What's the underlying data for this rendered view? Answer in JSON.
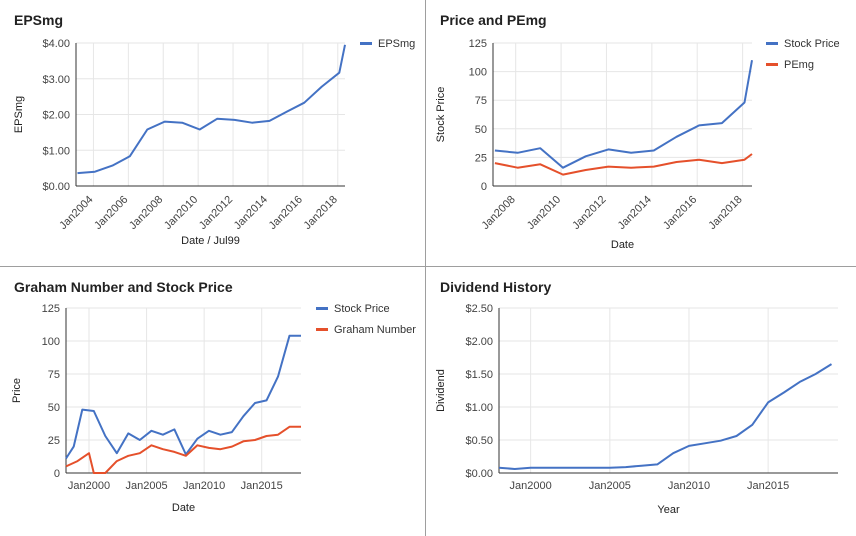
{
  "colors": {
    "blue": "#4472C4",
    "red": "#E5502B",
    "grid": "#e6e6e6",
    "axis": "#333333",
    "text": "#444444"
  },
  "chart_data": [
    {
      "type": "line",
      "title": "EPSmg",
      "xlabel": "Date / Jul99",
      "ylabel": "EPSmg",
      "x_type": "date",
      "xlim": [
        "2003-01-01",
        "2018-06-01"
      ],
      "ylim": [
        0,
        4
      ],
      "yticks": [
        0,
        1,
        2,
        3,
        4
      ],
      "ytick_labels": [
        "$0.00",
        "$1.00",
        "$2.00",
        "$3.00",
        "$4.00"
      ],
      "xticks": [
        "2004-01-01",
        "2006-01-01",
        "2008-01-01",
        "2010-01-01",
        "2012-01-01",
        "2014-01-01",
        "2016-01-01",
        "2018-01-01"
      ],
      "xtick_labels": [
        "Jan2004",
        "Jan2006",
        "Jan2008",
        "Jan2010",
        "Jan2012",
        "Jan2014",
        "Jan2016",
        "Jan2018"
      ],
      "xtick_rotate": true,
      "grid": true,
      "legend_position": "right",
      "series": [
        {
          "name": "EPSmg",
          "color": "#4472C4",
          "x": [
            "2003-02-01",
            "2004-02-01",
            "2005-02-01",
            "2006-02-01",
            "2007-02-01",
            "2008-02-01",
            "2009-02-01",
            "2010-02-01",
            "2011-02-01",
            "2012-02-01",
            "2013-02-01",
            "2014-02-01",
            "2015-02-01",
            "2016-02-01",
            "2017-02-01",
            "2018-02-01",
            "2018-06-01"
          ],
          "y": [
            0.36,
            0.4,
            0.57,
            0.83,
            1.58,
            1.8,
            1.77,
            1.58,
            1.88,
            1.85,
            1.77,
            1.82,
            2.08,
            2.33,
            2.78,
            3.17,
            3.95
          ]
        }
      ]
    },
    {
      "type": "line",
      "title": "Price and PEmg",
      "xlabel": "Date",
      "ylabel": "Stock Price",
      "x_type": "date",
      "xlim": [
        "2007-01-01",
        "2018-06-01"
      ],
      "ylim": [
        0,
        125
      ],
      "yticks": [
        0,
        25,
        50,
        75,
        100,
        125
      ],
      "ytick_labels": [
        "0",
        "25",
        "50",
        "75",
        "100",
        "125"
      ],
      "xticks": [
        "2008-01-01",
        "2010-01-01",
        "2012-01-01",
        "2014-01-01",
        "2016-01-01",
        "2018-01-01"
      ],
      "xtick_labels": [
        "Jan2008",
        "Jan2010",
        "Jan2012",
        "Jan2014",
        "Jan2016",
        "Jan2018"
      ],
      "xtick_rotate": true,
      "grid": true,
      "legend_position": "right",
      "series": [
        {
          "name": "Stock Price",
          "color": "#4472C4",
          "x": [
            "2007-02-01",
            "2008-02-01",
            "2009-02-01",
            "2010-02-01",
            "2011-02-01",
            "2012-02-01",
            "2013-02-01",
            "2014-02-01",
            "2015-02-01",
            "2016-02-01",
            "2017-02-01",
            "2018-02-01",
            "2018-06-01"
          ],
          "y": [
            31,
            29,
            33,
            16,
            26,
            32,
            29,
            31,
            43,
            53,
            55,
            73,
            110
          ]
        },
        {
          "name": "PEmg",
          "color": "#E5502B",
          "x": [
            "2007-02-01",
            "2008-02-01",
            "2009-02-01",
            "2010-02-01",
            "2011-02-01",
            "2012-02-01",
            "2013-02-01",
            "2014-02-01",
            "2015-02-01",
            "2016-02-01",
            "2017-02-01",
            "2018-02-01",
            "2018-06-01"
          ],
          "y": [
            20,
            16,
            19,
            10,
            14,
            17,
            16,
            17,
            21,
            23,
            20,
            23,
            28
          ]
        }
      ]
    },
    {
      "type": "line",
      "title": "Graham Number and Stock Price",
      "xlabel": "Date",
      "ylabel": "Price",
      "x_type": "date",
      "xlim": [
        "1998-01-01",
        "2018-06-01"
      ],
      "ylim": [
        0,
        125
      ],
      "yticks": [
        0,
        25,
        50,
        75,
        100,
        125
      ],
      "ytick_labels": [
        "0",
        "25",
        "50",
        "75",
        "100",
        "125"
      ],
      "xticks": [
        "2000-01-01",
        "2005-01-01",
        "2010-01-01",
        "2015-01-01"
      ],
      "xtick_labels": [
        "Jan2000",
        "Jan2005",
        "Jan2010",
        "Jan2015"
      ],
      "xtick_rotate": false,
      "grid": true,
      "legend_position": "right",
      "series": [
        {
          "name": "Stock Price",
          "color": "#4472C4",
          "x": [
            "1998-01-01",
            "1998-09-01",
            "1999-06-01",
            "2000-06-01",
            "2001-06-01",
            "2002-06-01",
            "2003-06-01",
            "2004-06-01",
            "2005-06-01",
            "2006-06-01",
            "2007-06-01",
            "2008-06-01",
            "2009-06-01",
            "2010-06-01",
            "2011-06-01",
            "2012-06-01",
            "2013-06-01",
            "2014-06-01",
            "2015-06-01",
            "2016-06-01",
            "2017-06-01",
            "2018-06-01"
          ],
          "y": [
            11,
            20,
            48,
            47,
            28,
            15,
            30,
            25,
            32,
            29,
            33,
            14,
            26,
            32,
            29,
            31,
            43,
            53,
            55,
            73,
            104,
            104
          ]
        },
        {
          "name": "Graham Number",
          "color": "#E5502B",
          "x": [
            "1998-01-01",
            "1999-01-01",
            "2000-01-01",
            "2000-06-01",
            "2001-06-01",
            "2002-06-01",
            "2003-06-01",
            "2004-06-01",
            "2005-06-01",
            "2006-06-01",
            "2007-06-01",
            "2008-06-01",
            "2009-06-01",
            "2010-06-01",
            "2011-06-01",
            "2012-06-01",
            "2013-06-01",
            "2014-06-01",
            "2015-06-01",
            "2016-06-01",
            "2017-06-01",
            "2018-06-01"
          ],
          "y": [
            5,
            9,
            15,
            0,
            0,
            9,
            13,
            15,
            21,
            18,
            16,
            13,
            21,
            19,
            18,
            20,
            24,
            25,
            28,
            29,
            35,
            35
          ]
        }
      ]
    },
    {
      "type": "line",
      "title": "Dividend History",
      "xlabel": "Year",
      "ylabel": "Dividend",
      "x_type": "date",
      "xlim": [
        "1998-01-01",
        "2019-06-01"
      ],
      "ylim": [
        0,
        2.5
      ],
      "yticks": [
        0,
        0.5,
        1,
        1.5,
        2,
        2.5
      ],
      "ytick_labels": [
        "$0.00",
        "$0.50",
        "$1.00",
        "$1.50",
        "$2.00",
        "$2.50"
      ],
      "xticks": [
        "2000-01-01",
        "2005-01-01",
        "2010-01-01",
        "2015-01-01"
      ],
      "xtick_labels": [
        "Jan2000",
        "Jan2005",
        "Jan2010",
        "Jan2015"
      ],
      "xtick_rotate": false,
      "grid": true,
      "legend_position": "none",
      "series": [
        {
          "name": "",
          "color": "#4472C4",
          "x": [
            "1998-01-01",
            "1999-01-01",
            "2000-01-01",
            "2001-01-01",
            "2002-01-01",
            "2003-01-01",
            "2004-01-01",
            "2005-01-01",
            "2006-01-01",
            "2007-01-01",
            "2008-01-01",
            "2009-01-01",
            "2010-01-01",
            "2011-01-01",
            "2012-01-01",
            "2013-01-01",
            "2014-01-01",
            "2015-01-01",
            "2016-01-01",
            "2017-01-01",
            "2018-01-01",
            "2019-01-01"
          ],
          "y": [
            0.08,
            0.06,
            0.08,
            0.08,
            0.08,
            0.08,
            0.08,
            0.08,
            0.09,
            0.11,
            0.13,
            0.3,
            0.41,
            0.45,
            0.49,
            0.56,
            0.73,
            1.07,
            1.22,
            1.38,
            1.5,
            1.65
          ]
        }
      ]
    }
  ]
}
